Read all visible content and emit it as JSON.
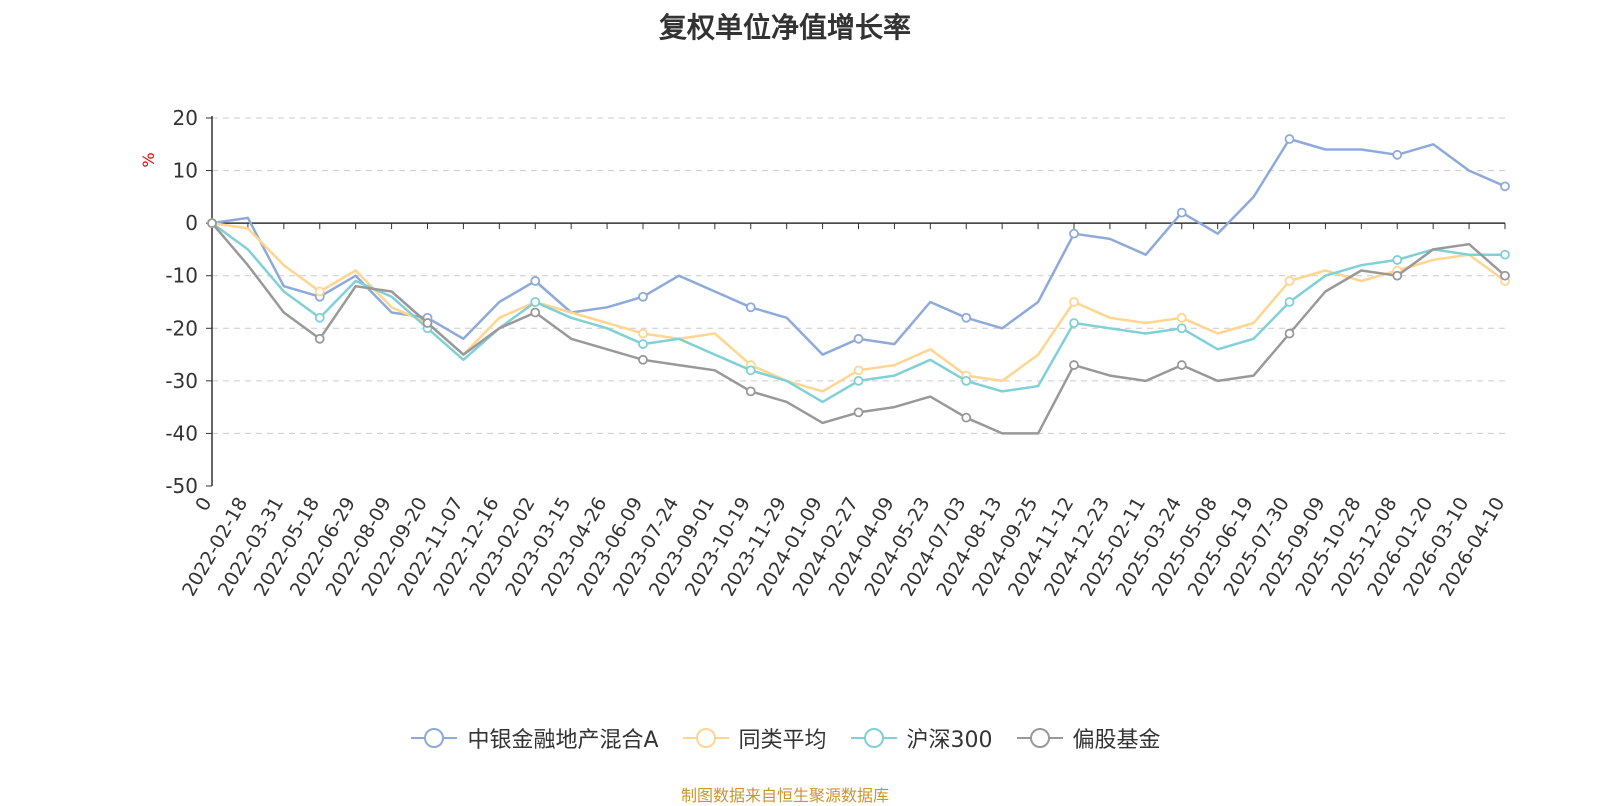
{
  "chart_data": {
    "type": "line",
    "title": "复权单位净值增长率",
    "ylabel": "%",
    "xlabel": "",
    "ylim": [
      -50,
      20
    ],
    "yticks": [
      20,
      10,
      0,
      -10,
      -20,
      -30,
      -40,
      -50
    ],
    "categories": [
      "0",
      "2022-02-18",
      "2022-03-31",
      "2022-05-18",
      "2022-06-29",
      "2022-08-09",
      "2022-09-20",
      "2022-11-07",
      "2022-12-16",
      "2023-02-02",
      "2023-03-15",
      "2023-04-26",
      "2023-06-09",
      "2023-07-24",
      "2023-09-01",
      "2023-10-19",
      "2023-11-29",
      "2024-01-09",
      "2024-02-27",
      "2024-04-09",
      "2024-05-23",
      "2024-07-03",
      "2024-08-13",
      "2024-09-25",
      "2024-11-12",
      "2024-12-23",
      "2025-02-11",
      "2025-03-24",
      "2025-05-08",
      "2025-06-19",
      "2025-07-30",
      "2025-09-09",
      "2025-10-28",
      "2025-12-08",
      "2026-01-20",
      "2026-03-10",
      "2026-04-10"
    ],
    "grid": "dashed-horizontal",
    "legend_position": "bottom-center",
    "series": [
      {
        "name": "中银金融地产混合A",
        "color": "#8eaadb",
        "values": [
          0,
          1,
          -12,
          -14,
          -10,
          -17,
          -18,
          -22,
          -15,
          -11,
          -17,
          -16,
          -14,
          -10,
          -13,
          -16,
          -18,
          -25,
          -22,
          -23,
          -15,
          -18,
          -20,
          -15,
          -2,
          -3,
          -6,
          2,
          -2,
          5,
          16,
          14,
          14,
          13,
          15,
          10,
          7
        ]
      },
      {
        "name": "同类平均",
        "color": "#ffd591",
        "values": [
          0,
          -1,
          -8,
          -13,
          -9,
          -16,
          -19,
          -25,
          -18,
          -15,
          -17,
          -19,
          -21,
          -22,
          -21,
          -27,
          -30,
          -32,
          -28,
          -27,
          -24,
          -29,
          -30,
          -25,
          -15,
          -18,
          -19,
          -18,
          -21,
          -19,
          -11,
          -9,
          -11,
          -9,
          -7,
          -6,
          -11
        ]
      },
      {
        "name": "沪深300",
        "color": "#7fd1d6",
        "values": [
          0,
          -5,
          -13,
          -18,
          -11,
          -14,
          -20,
          -26,
          -20,
          -15,
          -18,
          -20,
          -23,
          -22,
          -25,
          -28,
          -30,
          -34,
          -30,
          -29,
          -26,
          -30,
          -32,
          -31,
          -19,
          -20,
          -21,
          -20,
          -24,
          -22,
          -15,
          -10,
          -8,
          -7,
          -5,
          -6,
          -6
        ]
      },
      {
        "name": "偏股基金",
        "color": "#999999",
        "values": [
          0,
          -8,
          -17,
          -22,
          -12,
          -13,
          -19,
          -25,
          -20,
          -17,
          -22,
          -24,
          -26,
          -27,
          -28,
          -32,
          -34,
          -38,
          -36,
          -35,
          -33,
          -37,
          -40,
          -40,
          -27,
          -29,
          -30,
          -27,
          -30,
          -29,
          -21,
          -13,
          -9,
          -10,
          -5,
          -4,
          -10
        ]
      }
    ]
  },
  "source": "制图数据来自恒生聚源数据库"
}
